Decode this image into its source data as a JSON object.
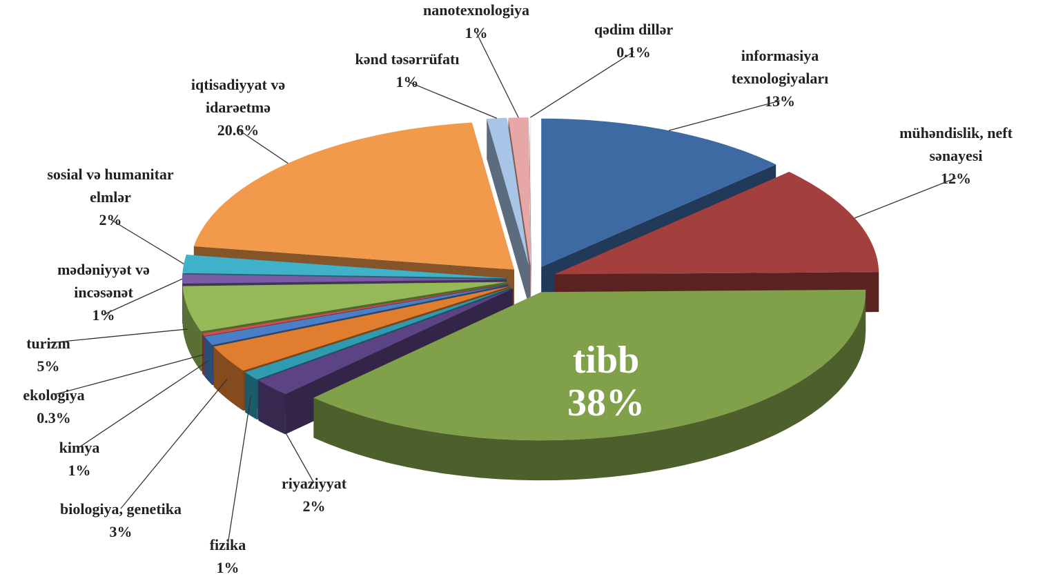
{
  "chart_data": {
    "type": "pie3d",
    "categories": [
      "informasiya texnologiyaları",
      "mühəndislik, neft sənayesi",
      "tibb",
      "riyaziyyat",
      "fizika",
      "biologiya, genetika",
      "kimya",
      "ekologiya",
      "turizm",
      "mədəniyyət və incəsənət",
      "sosial və humanitar elmlər",
      "iqtisadiyyat və idarəetmə",
      "kənd təsərrüfatı",
      "nanotexnologiya",
      "qədim dillər"
    ],
    "values": [
      13,
      12,
      38,
      2,
      1,
      3,
      1,
      0.3,
      5,
      1,
      2,
      20.6,
      1,
      1,
      0.1
    ],
    "value_labels": [
      "13%",
      "12%",
      "38%",
      "2%",
      "1%",
      "3%",
      "1%",
      "0.3%",
      "5%",
      "1%",
      "2%",
      "20.6%",
      "1%",
      "1%",
      "0.1%"
    ],
    "colors": [
      "#3d6aa3",
      "#a33f3c",
      "#80a04a",
      "#5c4383",
      "#2f9ab0",
      "#e07d2e",
      "#4a7fc8",
      "#c9504c",
      "#95b957",
      "#7a5ca6",
      "#3fb1c9",
      "#f29a4b",
      "#a8c4e6",
      "#e6a7a6",
      "#f7f2f2"
    ]
  }
}
